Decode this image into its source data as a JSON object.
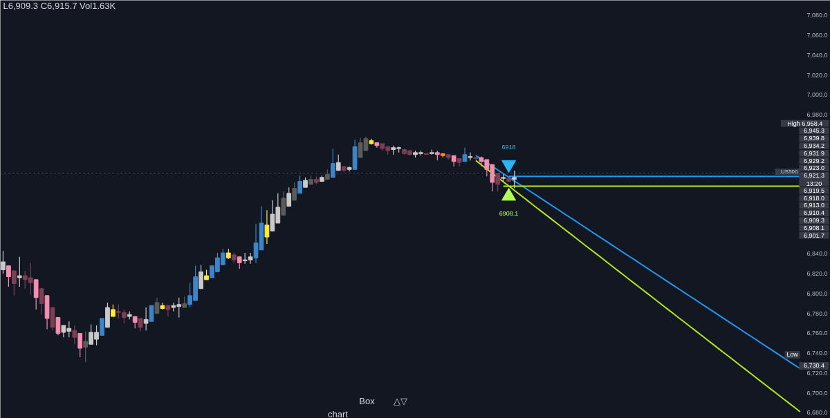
{
  "chart_data": {
    "type": "candlestick",
    "tick_labels": "y",
    "ylim": [
      6674.4,
      7095.3
    ],
    "yticks": [
      {
        "value": 7080,
        "label": "7,080.0"
      },
      {
        "value": 7060,
        "label": "7,060.0"
      },
      {
        "value": 7040,
        "label": "7,040.0"
      },
      {
        "value": 7020,
        "label": "7,020.0"
      },
      {
        "value": 7000,
        "label": "7,000.0"
      },
      {
        "value": 6980,
        "label": "6,980.0"
      },
      {
        "value": 6840,
        "label": "6,840.0"
      },
      {
        "value": 6820,
        "label": "6,820.0"
      },
      {
        "value": 6800,
        "label": "6,800.0"
      },
      {
        "value": 6780,
        "label": "6,780.0"
      },
      {
        "value": 6760,
        "label": "6,760.0"
      },
      {
        "value": 6740,
        "label": "6,740.0"
      },
      {
        "value": 6720,
        "label": "6,720.0"
      },
      {
        "value": 6700,
        "label": "6,700.0"
      },
      {
        "value": 6680,
        "label": "6,680.0"
      }
    ],
    "categories": [
      null,
      null,
      null,
      null,
      null,
      null,
      null,
      null,
      null,
      null,
      null,
      null,
      null,
      null,
      null,
      null,
      null,
      null,
      null,
      null,
      null,
      null,
      null,
      null,
      null,
      null,
      null,
      null,
      null,
      null,
      null,
      null,
      null,
      null,
      null,
      null,
      null,
      null,
      null,
      null,
      null,
      null,
      null,
      null,
      null,
      null,
      null,
      null,
      null,
      null,
      null,
      null,
      null,
      null,
      null,
      null,
      null,
      null,
      null,
      null,
      null,
      null,
      null,
      null,
      null,
      null,
      null,
      null,
      null,
      null,
      null,
      null,
      null,
      null,
      null,
      null,
      null,
      null,
      null,
      null,
      null,
      null,
      null,
      null,
      null,
      null,
      null,
      null,
      null,
      null,
      null,
      null,
      null,
      null,
      null,
      null,
      null,
      null,
      null,
      null,
      null,
      null,
      null,
      null,
      null,
      null,
      null,
      null,
      null,
      null,
      null,
      null,
      null,
      null,
      null,
      null,
      null,
      null,
      null,
      null,
      null,
      null,
      null,
      null,
      null,
      null,
      null,
      null,
      null,
      null,
      null,
      null,
      null,
      null,
      null,
      null,
      null,
      null,
      null,
      null,
      null,
      null,
      null,
      null,
      null,
      null,
      null,
      null,
      null,
      null,
      null
    ],
    "ohlc": [
      [
        6824,
        6843,
        6820,
        6832
      ],
      [
        6828,
        6828,
        6807,
        6817
      ],
      [
        6823,
        6823,
        6798,
        6810
      ],
      [
        6816,
        6837,
        6807,
        6818
      ],
      [
        6818,
        6823,
        6805,
        6814
      ],
      [
        6816,
        6831,
        6799,
        6811
      ],
      [
        6814,
        6814,
        6784,
        6796
      ],
      [
        6805,
        6805,
        6779,
        6790
      ],
      [
        6798,
        6798,
        6764,
        6775
      ],
      [
        6786,
        6786,
        6763,
        6766
      ],
      [
        6776,
        6776,
        6758,
        6760
      ],
      [
        6761,
        6768,
        6756,
        6768
      ],
      [
        6762,
        6772,
        6756,
        6765
      ],
      [
        6763,
        6768,
        6749,
        6756
      ],
      [
        6760,
        6760,
        6736,
        6745
      ],
      [
        6746,
        6762,
        6731,
        6752
      ],
      [
        6749,
        6769,
        6749,
        6761
      ],
      [
        6754,
        6768,
        6748,
        6761
      ],
      [
        6758,
        6775,
        6758,
        6775
      ],
      [
        6766,
        6791,
        6766,
        6786
      ],
      [
        6777,
        6789,
        6777,
        6784
      ],
      [
        6782,
        6789,
        6775,
        6781
      ],
      [
        6781,
        6784,
        6770,
        6776
      ],
      [
        6777,
        6782,
        6774,
        6779
      ],
      [
        6777,
        6777,
        6765,
        6771
      ],
      [
        6775,
        6775,
        6762,
        6766
      ],
      [
        6770,
        6786,
        6763,
        6774
      ],
      [
        6772,
        6788,
        6772,
        6788
      ],
      [
        6780,
        6796,
        6780,
        6791
      ],
      [
        6785,
        6791,
        6784,
        6788
      ],
      [
        6788,
        6788,
        6777,
        6784
      ],
      [
        6786,
        6791,
        6782,
        6788
      ],
      [
        6787,
        6796,
        6776,
        6789
      ],
      [
        6786,
        6797,
        6786,
        6790
      ],
      [
        6789,
        6811,
        6786,
        6798
      ],
      [
        6793,
        6828,
        6793,
        6817
      ],
      [
        6805,
        6829,
        6805,
        6822
      ],
      [
        6814,
        6824,
        6814,
        6818
      ],
      [
        6816,
        6828,
        6816,
        6828
      ],
      [
        6822,
        6841,
        6822,
        6836
      ],
      [
        6829,
        6845,
        6829,
        6841
      ],
      [
        6836,
        6845,
        6835,
        6841
      ],
      [
        6839,
        6841,
        6831,
        6834
      ],
      [
        6837,
        6837,
        6825,
        6831
      ],
      [
        6833,
        6841,
        6830,
        6834
      ],
      [
        6834,
        6841,
        6830,
        6837
      ],
      [
        6836,
        6870,
        6831,
        6851
      ],
      [
        6844,
        6888,
        6844,
        6871
      ],
      [
        6869,
        6884,
        6850,
        6857
      ],
      [
        6863,
        6894,
        6863,
        6880
      ],
      [
        6871,
        6901,
        6871,
        6887
      ],
      [
        6879,
        6903,
        6879,
        6896
      ],
      [
        6888,
        6907,
        6888,
        6901
      ],
      [
        6894,
        6912,
        6894,
        6906
      ],
      [
        6901,
        6919,
        6901,
        6913
      ],
      [
        6907,
        6917,
        6907,
        6914
      ],
      [
        6910,
        6919,
        6910,
        6915
      ],
      [
        6915,
        6918,
        6910,
        6912
      ],
      [
        6913,
        6919,
        6913,
        6917
      ],
      [
        6915,
        6925,
        6915,
        6920
      ],
      [
        6917,
        6946,
        6917,
        6931
      ],
      [
        6924,
        6940,
        6924,
        6932
      ],
      [
        6928,
        6928,
        6923,
        6924
      ],
      [
        6925,
        6928,
        6923,
        6927
      ],
      [
        6925,
        6955,
        6925,
        6948
      ],
      [
        6937,
        6957,
        6937,
        6952
      ],
      [
        6944,
        6958,
        6944,
        6956
      ],
      [
        6954,
        6956,
        6950,
        6951
      ],
      [
        6952,
        6952,
        6947,
        6949
      ],
      [
        6951,
        6951,
        6944,
        6946
      ],
      [
        6948,
        6948,
        6940,
        6944
      ],
      [
        6945,
        6949,
        6940,
        6947
      ],
      [
        6946,
        6948,
        6942,
        6947
      ],
      [
        6945,
        6946,
        6940,
        6941
      ],
      [
        6944,
        6944,
        6939,
        6940
      ],
      [
        6940,
        6944,
        6937,
        6942
      ],
      [
        6941,
        6944,
        6939,
        6942
      ],
      [
        6941,
        6941,
        6940,
        6940
      ],
      [
        6941,
        6945,
        6940,
        6942
      ],
      [
        6942,
        6944,
        6934,
        6940
      ],
      [
        6941,
        6941,
        6937,
        6939
      ],
      [
        6940,
        6940,
        6935,
        6937
      ],
      [
        6939,
        6939,
        6928,
        6933
      ],
      [
        6936,
        6936,
        6928,
        6932
      ],
      [
        6933,
        6947,
        6933,
        6940
      ],
      [
        6937,
        6942,
        6934,
        6938
      ],
      [
        6937,
        6937,
        6935,
        6936
      ],
      [
        6937,
        6938,
        6928,
        6933
      ],
      [
        6935,
        6935,
        6918,
        6925
      ],
      [
        6930,
        6930,
        6903,
        6912
      ],
      [
        6921,
        6921,
        6903,
        6910
      ],
      [
        6916,
        6920,
        6913,
        6917
      ],
      [
        6916,
        6916,
        6913,
        6913
      ],
      [
        6915,
        6924,
        6906,
        6917
      ],
      null,
      null,
      null,
      null,
      null,
      null,
      null,
      null,
      null,
      null,
      null,
      null,
      null,
      null,
      null,
      null,
      null,
      null,
      null,
      null,
      null,
      null,
      null,
      null,
      null,
      null,
      null,
      null,
      null,
      null,
      null,
      null,
      null,
      null,
      null,
      null,
      null,
      null,
      null,
      null,
      null,
      null,
      null,
      null,
      null,
      null,
      null,
      null,
      null,
      null,
      null,
      null,
      null,
      null,
      null,
      null,
      null
    ],
    "colors": [
      "#c9c9c9",
      "#f48fb1",
      "#7b3f55",
      "#c9c9c9",
      "#7b3f55",
      "#7b3f55",
      "#f48fb1",
      "#7b3f55",
      "#f48fb1",
      "#7b3f55",
      "#f48fb1",
      "#c9c9c9",
      "#c9c9c9",
      "#7b3f55",
      "#f48fb1",
      "#5b5b5b",
      "#c9c9c9",
      "#c9c9c9",
      "#3d85c6",
      "#c9c9c9",
      "#ffeb3b",
      "#7b3f55",
      "#7b3f55",
      "#c9c9c9",
      "#f48fb1",
      "#7b3f55",
      "#c9c9c9",
      "#3d85c6",
      "#5b5b5b",
      "#ffeb3b",
      "#7b3f55",
      "#c9c9c9",
      "#c9c9c9",
      "#5b5b5b",
      "#3d85c6",
      "#3d85c6",
      "#c9c9c9",
      "#ffeb3b",
      "#3d85c6",
      "#3d85c6",
      "#3d85c6",
      "#ffeb3b",
      "#7b3f55",
      "#f48fb1",
      "#c9c9c9",
      "#c9c9c9",
      "#3d85c6",
      "#3d85c6",
      "#ffeb3b",
      "#c9c9c9",
      "#c9c9c9",
      "#5b5b5b",
      "#c9c9c9",
      "#5b5b5b",
      "#3d85c6",
      "#c9c9c9",
      "#5b5b5b",
      "#7b3f55",
      "#c9c9c9",
      "#5b5b5b",
      "#3d85c6",
      "#c9c9c9",
      "#7b3f55",
      "#c9c9c9",
      "#3d85c6",
      "#5b5b5b",
      "#5b5b5b",
      "#ffeb3b",
      "#f48fb1",
      "#7b3f55",
      "#7b3f55",
      "#c9c9c9",
      "#c9c9c9",
      "#7b3f55",
      "#7b3f55",
      "#c9c9c9",
      "#c9c9c9",
      "#7b3f55",
      "#c9c9c9",
      "#f48fb1",
      "#ff9800",
      "#7b3f55",
      "#f48fb1",
      "#7b3f55",
      "#3d85c6",
      "#c9c9c9",
      "#7b3f55",
      "#f48fb1",
      "#f48fb1",
      "#f48fb1",
      "#7b3f55",
      "#c9c9c9",
      "#7b3f55",
      "#c9c9c9",
      null,
      null,
      null,
      null,
      null,
      null,
      null,
      null,
      null,
      null,
      null,
      null,
      null,
      null,
      null,
      null,
      null,
      null,
      null,
      null,
      null,
      null,
      null,
      null,
      null,
      null,
      null,
      null,
      null,
      null,
      null,
      null,
      null,
      null,
      null,
      null,
      null,
      null,
      null,
      null,
      null,
      null,
      null,
      null,
      null,
      null,
      null,
      null,
      null,
      null,
      null,
      null,
      null,
      null,
      null,
      null,
      null
    ],
    "series": [
      {
        "type": "line",
        "color": "#2196f3",
        "values": [
          null,
          null,
          null,
          null,
          null,
          null,
          null,
          null,
          null,
          null,
          null,
          null,
          null,
          null,
          null,
          null,
          null,
          null,
          null,
          null,
          null,
          null,
          null,
          null,
          null,
          null,
          null,
          null,
          null,
          null,
          null,
          null,
          null,
          null,
          null,
          null,
          null,
          null,
          null,
          null,
          null,
          null,
          null,
          null,
          null,
          null,
          null,
          null,
          null,
          null,
          null,
          null,
          null,
          null,
          null,
          null,
          null,
          null,
          null,
          null,
          null,
          null,
          null,
          null,
          null,
          null,
          null,
          null,
          null,
          null,
          null,
          null,
          null,
          null,
          null,
          null,
          null,
          null,
          null,
          null,
          null,
          null,
          null,
          null,
          null,
          null,
          6939.0,
          6935.4,
          6931.7,
          6928.1,
          6924.5,
          6920.8,
          6917.2,
          6913.5,
          6909.9,
          6906.3,
          6902.6,
          6899.0,
          6895.4,
          6891.7,
          6888.1,
          6884.5,
          6880.8,
          6877.2,
          6873.6,
          6869.9,
          6866.3,
          6862.6,
          6859.0,
          6855.4,
          6851.7,
          6848.1,
          6844.5,
          6840.8,
          6837.2,
          6833.6,
          6829.9,
          6826.3,
          6822.6,
          6819.0,
          6815.4,
          6811.7,
          6808.1,
          6804.5,
          6800.8,
          6797.2,
          6793.6,
          6789.9,
          6786.3,
          6782.7,
          6779.0,
          6775.4,
          6771.7,
          6768.1,
          6764.5,
          6760.8,
          6757.2,
          6753.6,
          6749.9,
          6746.3,
          6742.7,
          6739.0,
          6735.4,
          6731.7,
          6728.1,
          6724.5,
          null,
          null,
          null,
          null,
          null
        ]
      },
      {
        "type": "line",
        "color": "#b2e61e",
        "values": [
          null,
          null,
          null,
          null,
          null,
          null,
          null,
          null,
          null,
          null,
          null,
          null,
          null,
          null,
          null,
          null,
          null,
          null,
          null,
          null,
          null,
          null,
          null,
          null,
          null,
          null,
          null,
          null,
          null,
          null,
          null,
          null,
          null,
          null,
          null,
          null,
          null,
          null,
          null,
          null,
          null,
          null,
          null,
          null,
          null,
          null,
          null,
          null,
          null,
          null,
          null,
          null,
          null,
          null,
          null,
          null,
          null,
          null,
          null,
          null,
          null,
          null,
          null,
          null,
          null,
          null,
          null,
          null,
          null,
          null,
          null,
          null,
          null,
          null,
          null,
          null,
          null,
          null,
          null,
          null,
          null,
          null,
          null,
          null,
          null,
          null,
          6934.0,
          6929.7,
          6925.4,
          6921.1,
          6916.8,
          6912.6,
          6908.3,
          6904.0,
          6899.7,
          6895.4,
          6891.1,
          6886.8,
          6882.5,
          6878.3,
          6874.0,
          6869.7,
          6865.4,
          6861.1,
          6856.8,
          6852.5,
          6848.2,
          6844.0,
          6839.7,
          6835.4,
          6831.1,
          6826.8,
          6822.5,
          6818.2,
          6813.9,
          6809.6,
          6805.4,
          6801.1,
          6796.8,
          6792.5,
          6788.2,
          6783.9,
          6779.6,
          6775.3,
          6771.1,
          6766.8,
          6762.5,
          6758.2,
          6753.9,
          6749.6,
          6745.3,
          6741.0,
          6736.8,
          6732.5,
          6728.2,
          6723.9,
          6719.6,
          6715.3,
          6711.0,
          6706.7,
          6702.5,
          6698.2,
          6693.9,
          6689.6,
          6685.3,
          6681.0,
          null,
          null,
          null,
          null,
          null
        ]
      },
      {
        "type": "line",
        "color": "#2196f3",
        "values": [
          null,
          null,
          null,
          null,
          null,
          null,
          null,
          null,
          null,
          null,
          null,
          null,
          null,
          null,
          null,
          null,
          null,
          null,
          null,
          null,
          null,
          null,
          null,
          null,
          null,
          null,
          null,
          null,
          null,
          null,
          null,
          null,
          null,
          null,
          null,
          null,
          null,
          null,
          null,
          null,
          null,
          null,
          null,
          null,
          null,
          null,
          null,
          null,
          null,
          null,
          null,
          null,
          null,
          null,
          null,
          null,
          null,
          null,
          null,
          null,
          null,
          null,
          null,
          null,
          null,
          null,
          null,
          null,
          null,
          null,
          null,
          null,
          null,
          null,
          null,
          null,
          null,
          null,
          null,
          null,
          null,
          null,
          null,
          null,
          null,
          null,
          null,
          null,
          null,
          null,
          null,
          null,
          6918,
          6918,
          6918,
          6918,
          6918,
          6918,
          6918,
          6918,
          6918,
          6918,
          6918,
          6918,
          6918,
          6918,
          6918,
          6918,
          6918,
          6918,
          6918,
          6918,
          6918,
          6918,
          6918,
          6918,
          6918,
          6918,
          6918,
          6918,
          6918,
          6918,
          6918,
          6918,
          6918,
          6918,
          6918,
          6918,
          6918,
          6918,
          6918,
          6918,
          6918,
          6918,
          6918,
          6918,
          6918,
          6918,
          6918,
          6918,
          6918,
          6918,
          6918,
          6918,
          6918,
          6918,
          null,
          null,
          null,
          null,
          null
        ]
      },
      {
        "type": "line",
        "color": "#b2e61e",
        "values": [
          null,
          null,
          null,
          null,
          null,
          null,
          null,
          null,
          null,
          null,
          null,
          null,
          null,
          null,
          null,
          null,
          null,
          null,
          null,
          null,
          null,
          null,
          null,
          null,
          null,
          null,
          null,
          null,
          null,
          null,
          null,
          null,
          null,
          null,
          null,
          null,
          null,
          null,
          null,
          null,
          null,
          null,
          null,
          null,
          null,
          null,
          null,
          null,
          null,
          null,
          null,
          null,
          null,
          null,
          null,
          null,
          null,
          null,
          null,
          null,
          null,
          null,
          null,
          null,
          null,
          null,
          null,
          null,
          null,
          null,
          null,
          null,
          null,
          null,
          null,
          null,
          null,
          null,
          null,
          null,
          null,
          null,
          null,
          null,
          null,
          null,
          null,
          null,
          null,
          null,
          null,
          6908.1,
          6908.1,
          6908.1,
          6908.1,
          6908.1,
          6908.1,
          6908.1,
          6908.1,
          6908.1,
          6908.1,
          6908.1,
          6908.1,
          6908.1,
          6908.1,
          6908.1,
          6908.1,
          6908.1,
          6908.1,
          6908.1,
          6908.1,
          6908.1,
          6908.1,
          6908.1,
          6908.1,
          6908.1,
          6908.1,
          6908.1,
          6908.1,
          6908.1,
          6908.1,
          6908.1,
          6908.1,
          6908.1,
          6908.1,
          6908.1,
          6908.1,
          6908.1,
          6908.1,
          6908.1,
          6908.1,
          6908.1,
          6908.1,
          6908.1,
          6908.1,
          6908.1,
          6908.1,
          6908.1,
          6908.1,
          6908.1,
          6908.1,
          6908.1,
          6908.1,
          6908.1,
          6908.1,
          6908.1,
          null,
          null,
          null,
          null,
          null
        ]
      },
      {
        "type": "scatter",
        "marker": "triangle_down",
        "color": "#29b6f6",
        "values": [
          null,
          null,
          null,
          null,
          null,
          null,
          null,
          null,
          null,
          null,
          null,
          null,
          null,
          null,
          null,
          null,
          null,
          null,
          null,
          null,
          null,
          null,
          null,
          null,
          null,
          null,
          null,
          null,
          null,
          null,
          null,
          null,
          null,
          null,
          null,
          null,
          null,
          null,
          null,
          null,
          null,
          null,
          null,
          null,
          null,
          null,
          null,
          null,
          null,
          null,
          null,
          null,
          null,
          null,
          null,
          null,
          null,
          null,
          null,
          null,
          null,
          null,
          null,
          null,
          null,
          null,
          null,
          null,
          null,
          null,
          null,
          null,
          null,
          null,
          null,
          null,
          null,
          null,
          null,
          null,
          null,
          null,
          null,
          null,
          null,
          null,
          null,
          null,
          null,
          null,
          null,
          null,
          6930,
          null,
          null,
          null,
          null,
          null,
          null,
          null,
          null,
          null,
          null,
          null,
          null,
          null,
          null,
          null,
          null,
          null,
          null,
          null,
          null,
          null,
          null,
          null,
          null,
          null,
          null,
          null,
          null,
          null,
          null,
          null,
          null,
          null,
          null,
          null,
          null,
          null,
          null,
          null,
          null,
          null,
          null,
          null,
          null,
          null,
          null,
          null,
          null,
          null,
          null,
          null,
          null,
          null,
          null,
          null,
          null,
          null,
          null
        ]
      },
      {
        "type": "scatter",
        "marker": "triangle",
        "color": "#b2ff59",
        "values": [
          null,
          null,
          null,
          null,
          null,
          null,
          null,
          null,
          null,
          null,
          null,
          null,
          null,
          null,
          null,
          null,
          null,
          null,
          null,
          null,
          null,
          null,
          null,
          null,
          null,
          null,
          null,
          null,
          null,
          null,
          null,
          null,
          null,
          null,
          null,
          null,
          null,
          null,
          null,
          null,
          null,
          null,
          null,
          null,
          null,
          null,
          null,
          null,
          null,
          null,
          null,
          null,
          null,
          null,
          null,
          null,
          null,
          null,
          null,
          null,
          null,
          null,
          null,
          null,
          null,
          null,
          null,
          null,
          null,
          null,
          null,
          null,
          null,
          null,
          null,
          null,
          null,
          null,
          null,
          null,
          null,
          null,
          null,
          null,
          null,
          null,
          null,
          null,
          null,
          null,
          null,
          null,
          6898,
          null,
          null,
          null,
          null,
          null,
          null,
          null,
          null,
          null,
          null,
          null,
          null,
          null,
          null,
          null,
          null,
          null,
          null,
          null,
          null,
          null,
          null,
          null,
          null,
          null,
          null,
          null,
          null,
          null,
          null,
          null,
          null,
          null,
          null,
          null,
          null,
          null,
          null,
          null,
          null,
          null,
          null,
          null,
          null,
          null,
          null,
          null,
          null,
          null,
          null,
          null,
          null,
          null,
          null,
          null,
          null,
          null,
          null
        ]
      }
    ],
    "ref_lines": [
      {
        "axis": "y",
        "value": 6921.3,
        "label": "US500",
        "color": "#5d606b",
        "line_style": "dotted"
      }
    ],
    "annotations": [
      "L6,909.3 C6,915.7 Vol1.63K",
      "Box",
      "△▽",
      "chart",
      "6918",
      "6908.1",
      "High 6,958.4",
      "6,945.3",
      "6,939.8",
      "6,934.2",
      "6,931.9",
      "6,929.2",
      "6,923.0",
      "6,921.3\n13:20",
      "6,919.5",
      "6,918.0",
      "6,913.0",
      "6,910.4",
      "6,909.3",
      "6,908.1",
      "6,901.7",
      "Low",
      "6,730.4"
    ]
  }
}
